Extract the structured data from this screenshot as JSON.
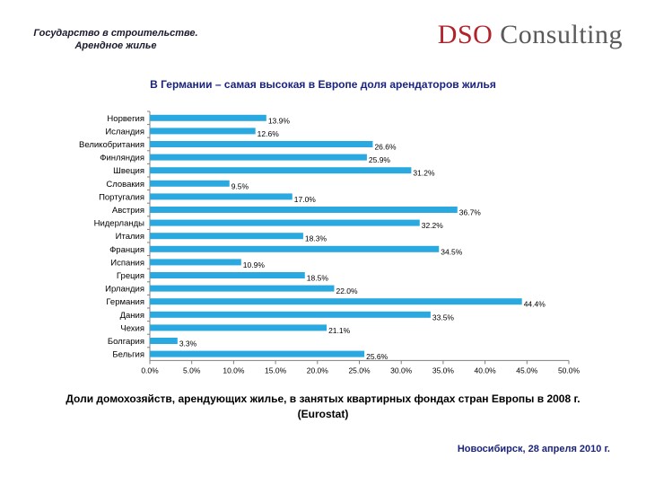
{
  "header": {
    "title_line1": "Государство в строительстве.",
    "title_line2": "Арендное жилье"
  },
  "logo": {
    "dso": "DSO",
    "rest": " Consulting"
  },
  "caption": {
    "line1": "Доли домохозяйств, арендующих жилье, в занятых квартирных фондах стран Европы в 2008 г.",
    "line2": "(Eurostat)"
  },
  "footer": {
    "text": "Новосибирск, 28 апреля 2010 г."
  },
  "colors": {
    "bar": "#29a9e0",
    "axis": "#808080",
    "title": "#1a237e"
  },
  "chart_data": {
    "type": "bar",
    "orientation": "horizontal",
    "title": "В Германии – самая высокая в Европе доля арендаторов жилья",
    "xlabel": "",
    "ylabel": "",
    "xlim": [
      0,
      50
    ],
    "xticks": [
      "0.0%",
      "5.0%",
      "10.0%",
      "15.0%",
      "20.0%",
      "25.0%",
      "30.0%",
      "35.0%",
      "40.0%",
      "45.0%",
      "50.0%"
    ],
    "categories": [
      "Норвегия",
      "Исландия",
      "Великобритания",
      "Финляндия",
      "Швеция",
      "Словакия",
      "Португалия",
      "Австрия",
      "Нидерланды",
      "Италия",
      "Франция",
      "Испания",
      "Греция",
      "Ирландия",
      "Германия",
      "Дания",
      "Чехия",
      "Болгария",
      "Бельгия"
    ],
    "values": [
      13.9,
      12.6,
      26.6,
      25.9,
      31.2,
      9.5,
      17.0,
      36.7,
      32.2,
      18.3,
      34.5,
      10.9,
      18.5,
      22.0,
      44.4,
      33.5,
      21.1,
      3.3,
      25.6
    ],
    "labels": [
      "13.9%",
      "12.6%",
      "26.6%",
      "25.9%",
      "31.2%",
      "9.5%",
      "17.0%",
      "36.7%",
      "32.2%",
      "18.3%",
      "34.5%",
      "10.9%",
      "18.5%",
      "22.0%",
      "44.4%",
      "33.5%",
      "21.1%",
      "3.3%",
      "25.6%"
    ]
  }
}
